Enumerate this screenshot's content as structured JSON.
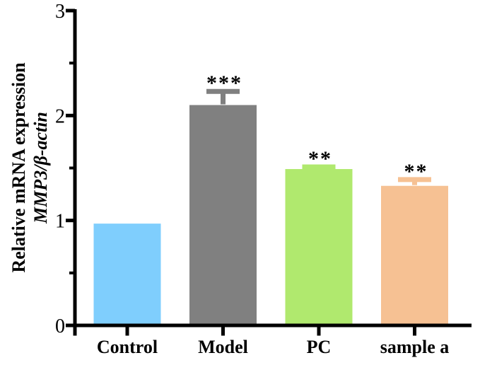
{
  "page": {
    "background": "#ffffff"
  },
  "chart_data": {
    "type": "bar",
    "title": "",
    "categories": [
      "Control",
      "Model",
      "PC",
      "sample a"
    ],
    "values": [
      0.97,
      2.1,
      1.49,
      1.33
    ],
    "errors_plus": [
      0,
      0.13,
      0.02,
      0.06
    ],
    "significance_labels": [
      "",
      "***",
      "**",
      "**"
    ],
    "bar_colors": [
      "#7FCEFD",
      "#808080",
      "#B0E96E",
      "#F6C193"
    ],
    "ylabel_line1": "Relative mRNA expression",
    "ylabel_line2": "MMP3/β-actin",
    "xlabel": "",
    "ylim": [
      0,
      3
    ],
    "y_major_ticks": [
      0,
      1,
      2,
      3
    ],
    "y_minor_ticks": [
      0.5,
      1.5,
      2.5
    ],
    "axis_color": "#000000",
    "text_color": "#000000",
    "grid": false,
    "legend": false,
    "error_bar_style": "upper only, capped, same color as bar"
  }
}
